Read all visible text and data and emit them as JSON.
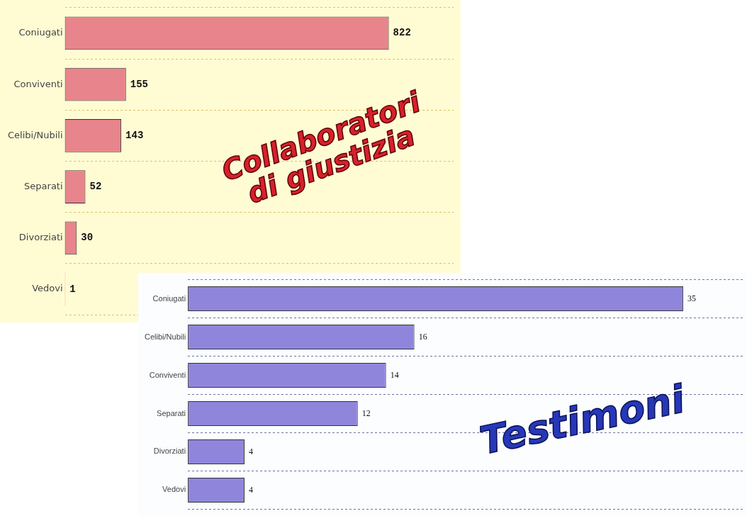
{
  "chart_data": [
    {
      "type": "bar",
      "orientation": "horizontal",
      "title": "Collaboratori di giustizia",
      "categories": [
        "Coniugati",
        "Conviventi",
        "Celibi/Nubili",
        "Separati",
        "Divorziati",
        "Vedovi"
      ],
      "values": [
        822,
        155,
        143,
        52,
        30,
        1
      ],
      "color": "#e8848c",
      "data_labels": true,
      "grid": "y",
      "legend": false
    },
    {
      "type": "bar",
      "orientation": "horizontal",
      "title": "Testimoni",
      "categories": [
        "Coniugati",
        "Celibi/Nubili",
        "Conviventi",
        "Separati",
        "Divorziati",
        "Vedovi"
      ],
      "values": [
        35,
        16,
        14,
        12,
        4,
        4
      ],
      "color": "#8f86dc",
      "data_labels": true,
      "grid": "y",
      "legend": false
    }
  ]
}
